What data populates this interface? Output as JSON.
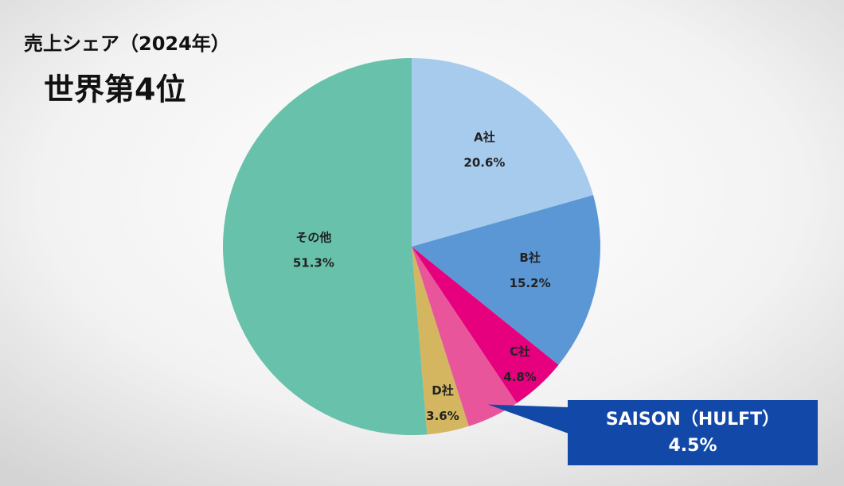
{
  "chart_data": {
    "type": "pie",
    "title": "売上シェア（2024年）",
    "subtitle": "世界第4位",
    "categories": [
      "A社",
      "B社",
      "C社",
      "SAISON（HULFT）",
      "D社",
      "その他"
    ],
    "values": [
      20.6,
      15.2,
      4.8,
      4.5,
      3.6,
      51.3
    ],
    "value_labels": [
      "20.6%",
      "15.2%",
      "4.8%",
      "4.5%",
      "3.6%",
      "51.3%"
    ],
    "colors": [
      "#a7cbed",
      "#5b97d5",
      "#e6007e",
      "#e8559a",
      "#d4b560",
      "#68c1aa"
    ]
  }
}
